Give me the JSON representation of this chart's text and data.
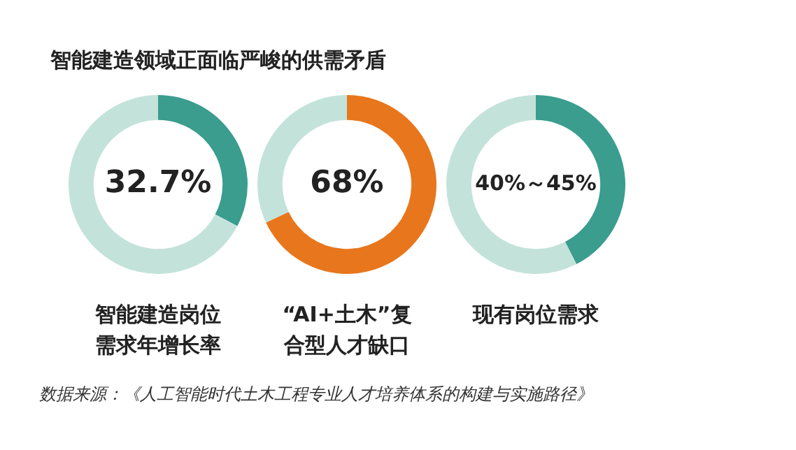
{
  "chart_data": [
    {
      "type": "donut",
      "title": "智能建造领域正面临严峻的供需矛盾",
      "xlabel": "智能建造岗位需求年增长率",
      "categories": [
        null,
        null
      ],
      "values": [
        32.7,
        67.3
      ],
      "colors": [
        "#3a9d8e",
        "#c3e3da"
      ],
      "value_labels": [
        "32.7%",
        null
      ]
    },
    {
      "type": "donut",
      "xlabel": "“AI+土木”复合型人才缺口",
      "categories": [
        null,
        null
      ],
      "values": [
        68,
        32
      ],
      "colors": [
        "#e8761c",
        "#c3e3da"
      ],
      "value_labels": [
        "68%",
        null
      ]
    },
    {
      "type": "donut",
      "xlabel": "现有岗位需求",
      "categories": [
        null,
        null
      ],
      "values": [
        42.5,
        57.5
      ],
      "colors": [
        "#3a9d8e",
        "#c3e3da"
      ],
      "annotations": [
        "40%～45%"
      ]
    },
    {
      "type": "other",
      "annotations": [
        "数据来源：《人工智能时代土木工程专业人才培养体系的构建与实施路径》"
      ]
    }
  ]
}
